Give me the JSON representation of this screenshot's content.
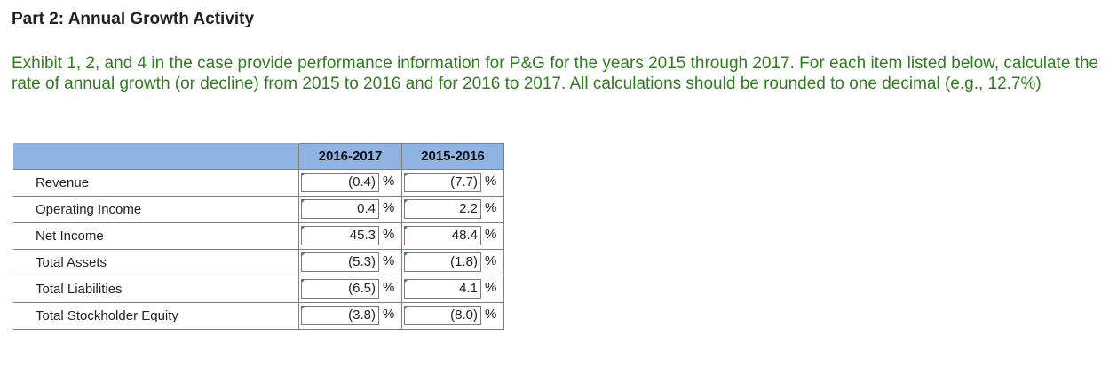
{
  "part_title": "Part 2: Annual Growth Activity",
  "instructions": "Exhibit 1, 2, and 4 in the case provide performance information for P&G for the years 2015 through 2017. For each item listed below, calculate the rate of annual growth (or decline) from 2015 to 2016 and for 2016 to 2017. All calculations should be rounded to one decimal (e.g., 12.7%)",
  "table": {
    "headers": [
      "",
      "2016-2017",
      "2015-2016"
    ],
    "unit_symbol": "%",
    "rows": [
      {
        "label": "Revenue",
        "v2016_2017": "(0.4)",
        "v2015_2016": "(7.7)"
      },
      {
        "label": "Operating Income",
        "v2016_2017": "0.4",
        "v2015_2016": "2.2"
      },
      {
        "label": "Net Income",
        "v2016_2017": "45.3",
        "v2015_2016": "48.4"
      },
      {
        "label": "Total Assets",
        "v2016_2017": "(5.3)",
        "v2015_2016": "(1.8)"
      },
      {
        "label": "Total Liabilities",
        "v2016_2017": "(6.5)",
        "v2015_2016": "4.1"
      },
      {
        "label": "Total Stockholder Equity",
        "v2016_2017": "(3.8)",
        "v2015_2016": "(8.0)"
      }
    ]
  },
  "colors": {
    "instruction_text": "#2f7d1e",
    "header_fill": "#8fb4e3",
    "answer_marker": "#3b78c2"
  }
}
